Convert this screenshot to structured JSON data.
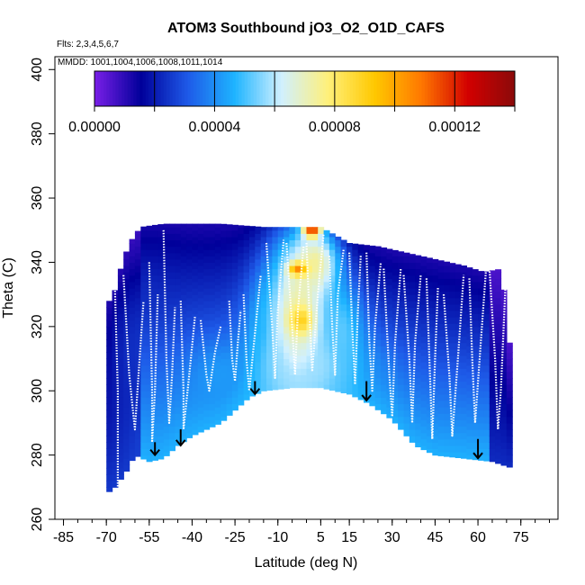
{
  "chart_data": {
    "type": "heatmap",
    "title": "ATOM3 Southbound jO3_O2_O1D_CAFS",
    "flights_note": "Flts: 2,3,4,5,6,7",
    "dates_note": "MMDD: 1001,1004,1006,1008,1011,1014",
    "xlabel": "Latitude (deg N)",
    "ylabel": "Theta (C)",
    "xlim": [
      -88,
      88
    ],
    "ylim": [
      260,
      404
    ],
    "x_ticks": [
      -85,
      -70,
      -55,
      -40,
      -25,
      -10,
      5,
      15,
      30,
      45,
      60,
      75
    ],
    "y_ticks": [
      260,
      280,
      300,
      320,
      340,
      360,
      380,
      400
    ],
    "colorbar": {
      "min": 0.0,
      "max": 0.00014,
      "labels": [
        "0.00000",
        "0.00004",
        "0.00008",
        "0.00012"
      ],
      "label_values": [
        0.0,
        4e-05,
        8e-05,
        0.00012
      ],
      "colors": [
        "#7a1fe8",
        "#00009a",
        "#1e5ae8",
        "#1eb4ff",
        "#d0f0ff",
        "#fff07a",
        "#ffc800",
        "#ff7800",
        "#d20000",
        "#8b0a0a"
      ]
    },
    "top_boundary": [
      [
        -68,
        328
      ],
      [
        -65,
        338
      ],
      [
        -62,
        346
      ],
      [
        -58,
        351
      ],
      [
        -50,
        352
      ],
      [
        -30,
        352
      ],
      [
        -15,
        351
      ],
      [
        -5,
        351
      ],
      [
        5,
        351
      ],
      [
        15,
        346
      ],
      [
        25,
        345
      ],
      [
        35,
        343
      ],
      [
        45,
        341
      ],
      [
        55,
        339
      ],
      [
        62,
        337
      ],
      [
        68,
        338
      ],
      [
        70,
        325
      ],
      [
        72,
        305
      ]
    ],
    "bottom_boundary": [
      [
        -70,
        268
      ],
      [
        -67,
        270
      ],
      [
        -63,
        275
      ],
      [
        -60,
        280
      ],
      [
        -55,
        278
      ],
      [
        -50,
        279
      ],
      [
        -45,
        283
      ],
      [
        -40,
        286
      ],
      [
        -30,
        290
      ],
      [
        -20,
        298
      ],
      [
        -15,
        300
      ],
      [
        -5,
        301
      ],
      [
        5,
        301
      ],
      [
        15,
        299
      ],
      [
        22,
        296
      ],
      [
        30,
        291
      ],
      [
        38,
        283
      ],
      [
        45,
        280
      ],
      [
        55,
        279
      ],
      [
        65,
        278
      ],
      [
        72,
        276
      ]
    ],
    "blobs": [
      {
        "lat": -3,
        "theta": 325,
        "rlat": 12,
        "rtheta": 26,
        "value": 7.2e-05
      },
      {
        "lat": 3,
        "theta": 340,
        "rlat": 8,
        "rtheta": 10,
        "value": 7.4e-05
      },
      {
        "lat": 0,
        "theta": 308,
        "rlat": 14,
        "rtheta": 9,
        "value": 5.8e-05
      },
      {
        "lat": 12,
        "theta": 318,
        "rlat": 8,
        "rtheta": 16,
        "value": 5.2e-05
      },
      {
        "lat": -13,
        "theta": 318,
        "rlat": 7,
        "rtheta": 16,
        "value": 4.8e-05
      },
      {
        "lat": -30,
        "theta": 305,
        "rlat": 11,
        "rtheta": 10,
        "value": 4.2e-05
      },
      {
        "lat": 18,
        "theta": 306,
        "rlat": 9,
        "rtheta": 8,
        "value": 4e-05
      },
      {
        "lat": -52,
        "theta": 285,
        "rlat": 8,
        "rtheta": 10,
        "value": 2.8e-05
      },
      {
        "lat": 2,
        "theta": 350,
        "rlat": 3,
        "rtheta": 2,
        "value": 0.00012
      },
      {
        "lat": -3,
        "theta": 338,
        "rlat": 3,
        "rtheta": 2,
        "value": 0.000105
      },
      {
        "lat": -2,
        "theta": 322,
        "rlat": 4,
        "rtheta": 4,
        "value": 9e-05
      },
      {
        "lat": -58,
        "theta": 312,
        "rlat": 12,
        "rtheta": 25,
        "value": 2.4e-05
      }
    ],
    "flight_tracks": [
      [
        [
          -67,
          332
        ],
        [
          -66,
          300
        ],
        [
          -66,
          270
        ]
      ],
      [
        [
          -64,
          336
        ],
        [
          -62,
          305
        ],
        [
          -60,
          288
        ],
        [
          -58,
          315
        ],
        [
          -57,
          328
        ]
      ],
      [
        [
          -55,
          340
        ],
        [
          -54,
          300
        ],
        [
          -54,
          284
        ],
        [
          -53,
          300
        ],
        [
          -52,
          330
        ]
      ],
      [
        [
          -50,
          350
        ],
        [
          -49,
          310
        ],
        [
          -48,
          290
        ],
        [
          -47,
          305
        ],
        [
          -46,
          326
        ]
      ],
      [
        [
          -44,
          328
        ],
        [
          -43,
          300
        ],
        [
          -43,
          288
        ],
        [
          -41,
          305
        ],
        [
          -39,
          323
        ]
      ],
      [
        [
          -37,
          322
        ],
        [
          -35,
          305
        ],
        [
          -34,
          300
        ],
        [
          -32,
          312
        ],
        [
          -30,
          320
        ]
      ],
      [
        [
          -27,
          328
        ],
        [
          -26,
          310
        ],
        [
          -25,
          303
        ],
        [
          -24,
          315
        ],
        [
          -23,
          325
        ]
      ],
      [
        [
          -22,
          330
        ],
        [
          -21,
          310
        ],
        [
          -20,
          300
        ],
        [
          -18,
          318
        ],
        [
          -16,
          336
        ]
      ],
      [
        [
          -14,
          346
        ],
        [
          -12,
          320
        ],
        [
          -11,
          304
        ],
        [
          -10,
          325
        ],
        [
          -8,
          347
        ]
      ],
      [
        [
          -7,
          346
        ],
        [
          -5,
          320
        ],
        [
          -4,
          305
        ],
        [
          -3,
          325
        ],
        [
          -1,
          345
        ]
      ],
      [
        [
          0,
          346
        ],
        [
          1,
          325
        ],
        [
          2,
          306
        ],
        [
          4,
          330
        ],
        [
          6,
          349
        ]
      ],
      [
        [
          8,
          342
        ],
        [
          9,
          320
        ],
        [
          10,
          305
        ],
        [
          11,
          330
        ],
        [
          13,
          344
        ]
      ],
      [
        [
          15,
          343
        ],
        [
          16,
          320
        ],
        [
          17,
          302
        ],
        [
          18,
          325
        ],
        [
          19,
          342
        ]
      ],
      [
        [
          21,
          343
        ],
        [
          22,
          315
        ],
        [
          23,
          300
        ],
        [
          24,
          320
        ],
        [
          26,
          340
        ]
      ],
      [
        [
          27,
          338
        ],
        [
          29,
          305
        ],
        [
          30,
          292
        ],
        [
          31,
          315
        ],
        [
          33,
          338
        ]
      ],
      [
        [
          34,
          336
        ],
        [
          36,
          310
        ],
        [
          37,
          290
        ],
        [
          38,
          315
        ],
        [
          40,
          336
        ]
      ],
      [
        [
          42,
          335
        ],
        [
          43,
          310
        ],
        [
          44,
          285
        ],
        [
          45,
          310
        ],
        [
          46,
          332
        ]
      ],
      [
        [
          48,
          330
        ],
        [
          50,
          305
        ],
        [
          51,
          286
        ],
        [
          53,
          310
        ],
        [
          55,
          336
        ]
      ],
      [
        [
          57,
          335
        ],
        [
          58,
          310
        ],
        [
          59,
          290
        ],
        [
          61,
          315
        ],
        [
          63,
          340
        ]
      ],
      [
        [
          64,
          338
        ],
        [
          66,
          310
        ],
        [
          67,
          288
        ],
        [
          68,
          300
        ],
        [
          70,
          340
        ]
      ]
    ],
    "arrows": [
      {
        "lat": -53,
        "theta_top": 284,
        "theta_tip": 280
      },
      {
        "lat": -44,
        "theta_top": 288,
        "theta_tip": 283
      },
      {
        "lat": -18,
        "theta_top": 303,
        "theta_tip": 299
      },
      {
        "lat": 21,
        "theta_top": 303,
        "theta_tip": 297
      },
      {
        "lat": 60,
        "theta_top": 285,
        "theta_tip": 279
      }
    ]
  }
}
